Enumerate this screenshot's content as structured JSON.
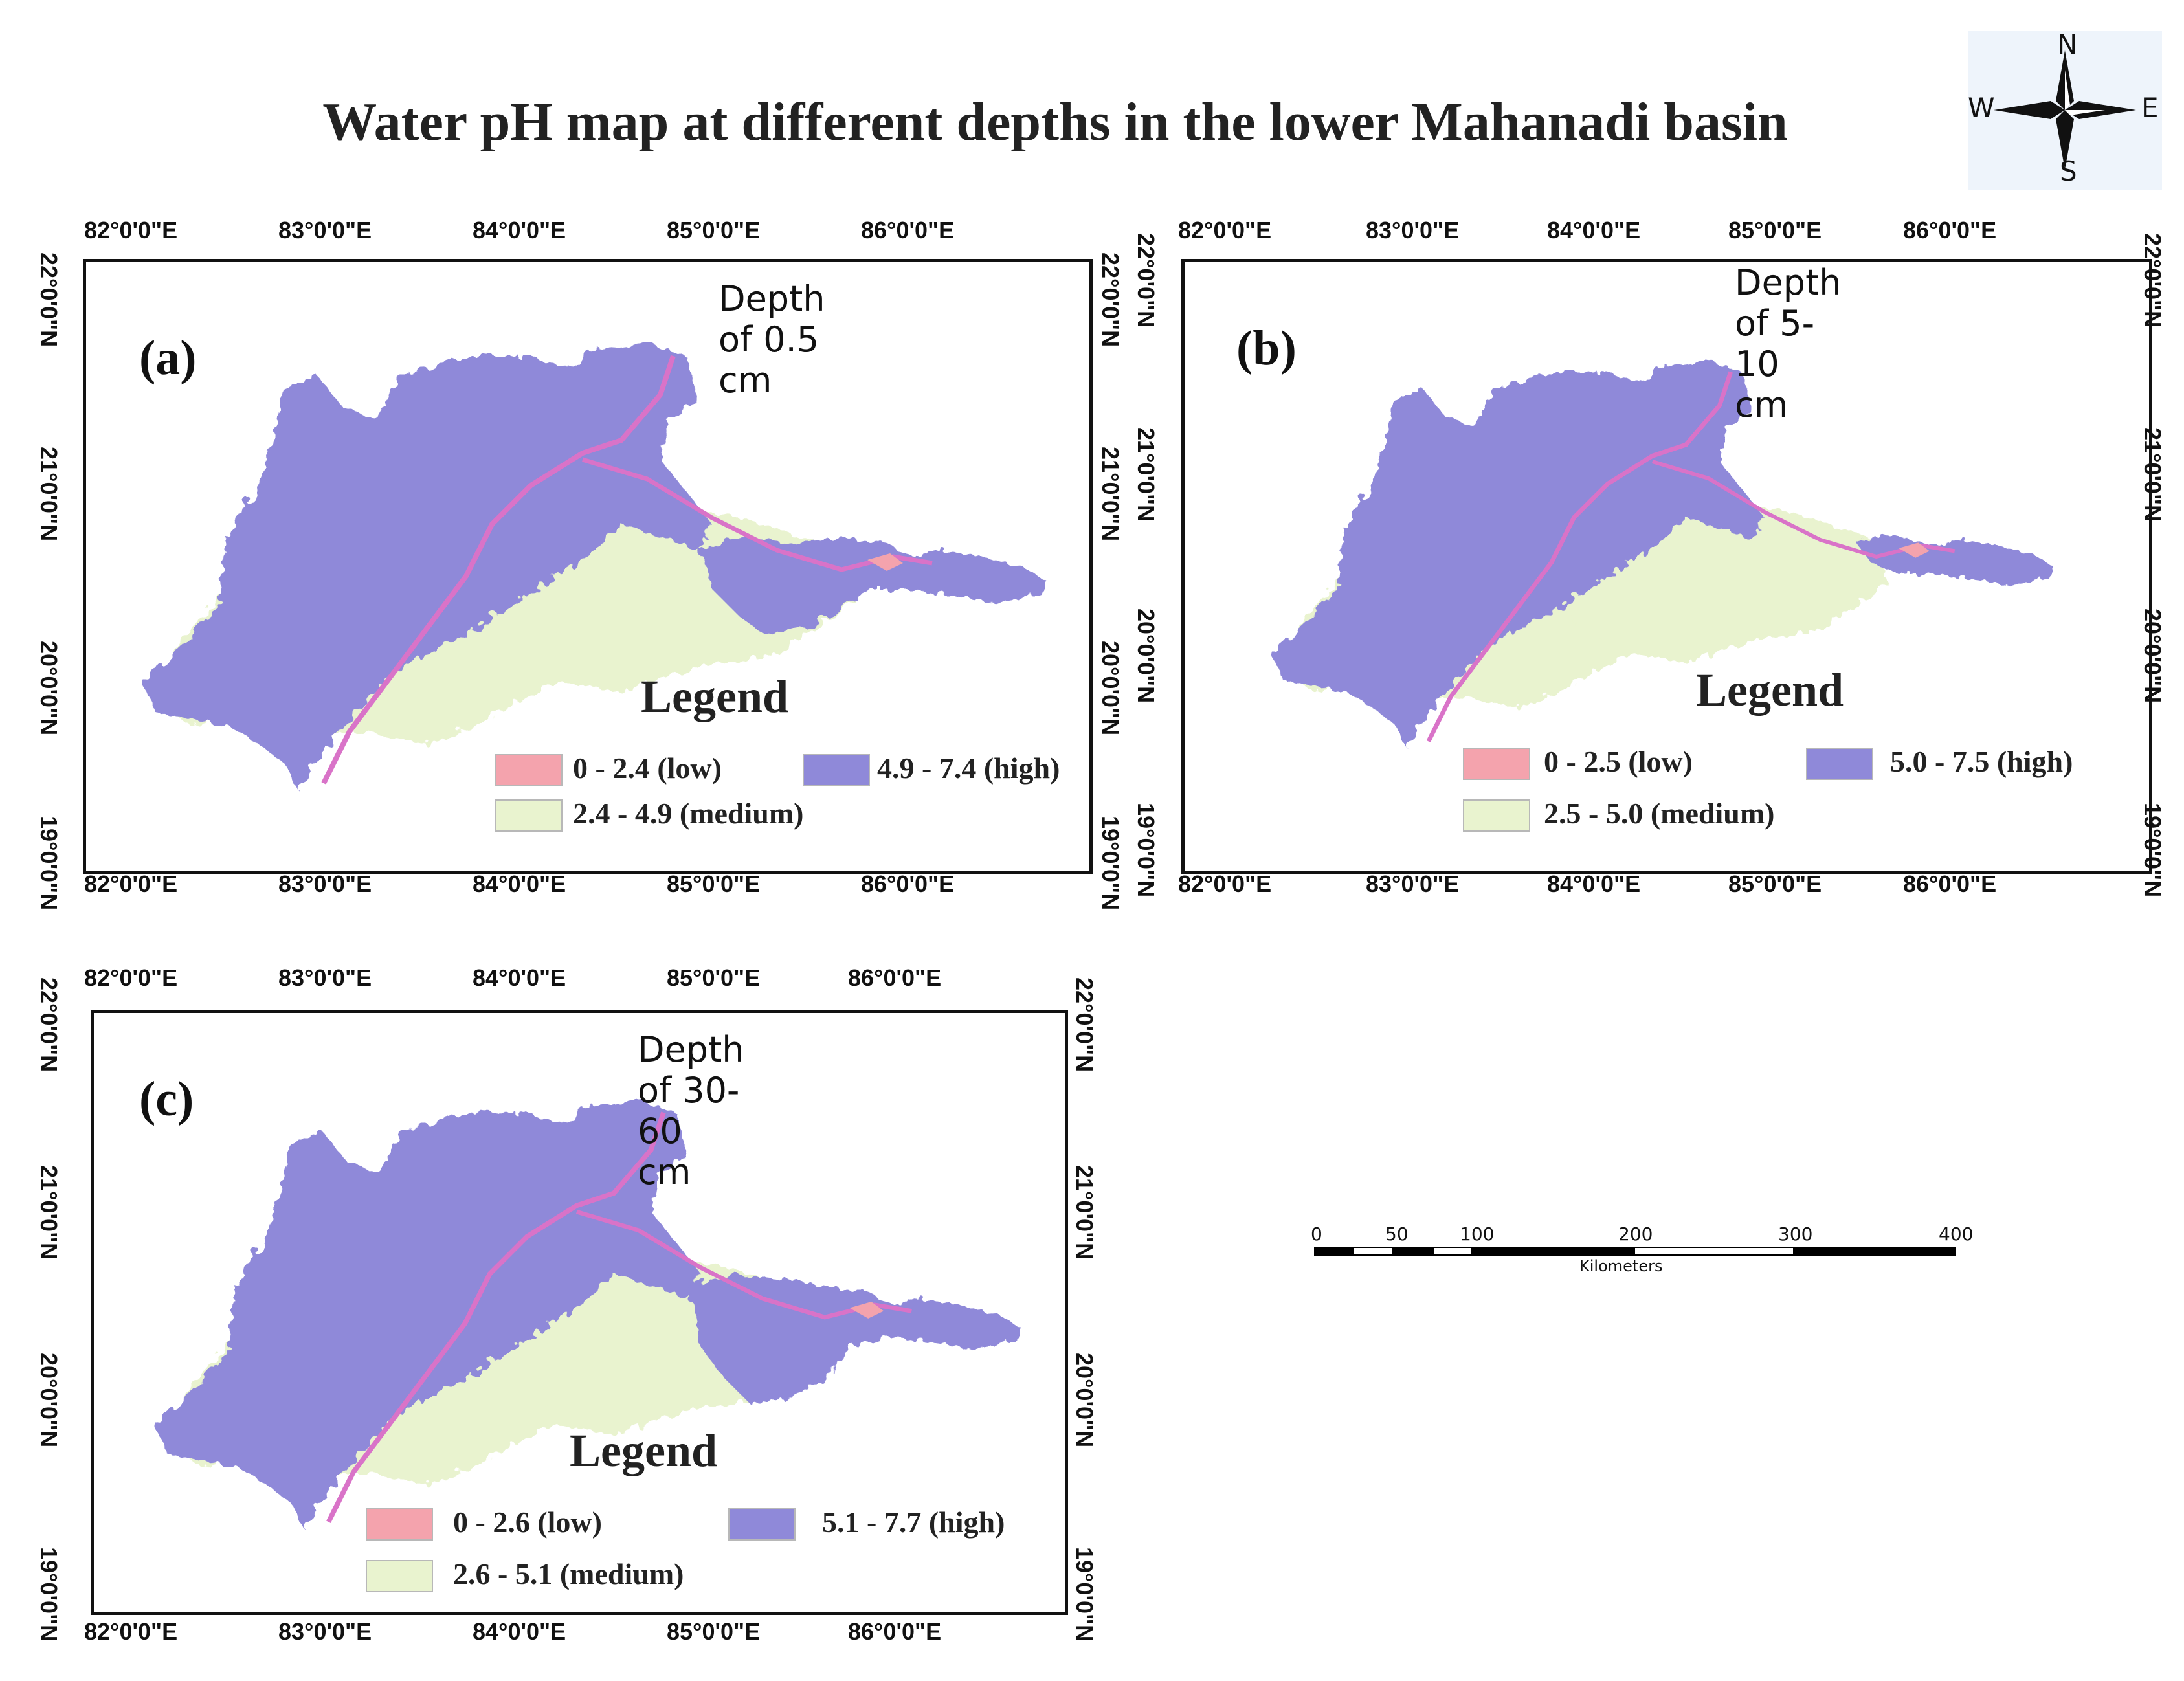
{
  "title": "Water pH map at different depths in the lower Mahanadi basin",
  "compass": {
    "n": "N",
    "s": "S",
    "e": "E",
    "w": "W"
  },
  "colors": {
    "low": "#f4a3ad",
    "medium": "#e9f3cf",
    "high": "#8f89d9",
    "river": "#d973c8"
  },
  "lon_ticks": [
    "82°0'0\"E",
    "83°0'0\"E",
    "84°0'0\"E",
    "85°0'0\"E",
    "86°0'0\"E"
  ],
  "lat_ticks": [
    "22°0'0\"N",
    "21°0'0\"N",
    "20°0'0\"N",
    "19°0'0\"N"
  ],
  "panels": [
    {
      "label": "(a)",
      "depth": "Depth of 0.5 cm",
      "legend_title": "Legend",
      "low": "0 - 2.4 (low)",
      "medium": "2.4 - 4.9 (medium)",
      "high": "4.9 - 7.4 (high)"
    },
    {
      "label": "(b)",
      "depth": "Depth of 5-10 cm",
      "legend_title": "Legend",
      "low": "0 - 2.5 (low)",
      "medium": "2.5 - 5.0 (medium)",
      "high": "5.0 - 7.5 (high)"
    },
    {
      "label": "(c)",
      "depth": "Depth of 30-60 cm",
      "legend_title": "Legend",
      "low": "0 - 2.6 (low)",
      "medium": "2.6 - 5.1 (medium)",
      "high": "5.1 - 7.7 (high)"
    }
  ],
  "scale": {
    "ticks": [
      "0",
      "50",
      "100",
      "200",
      "300",
      "400"
    ],
    "unit": "Kilometers"
  }
}
